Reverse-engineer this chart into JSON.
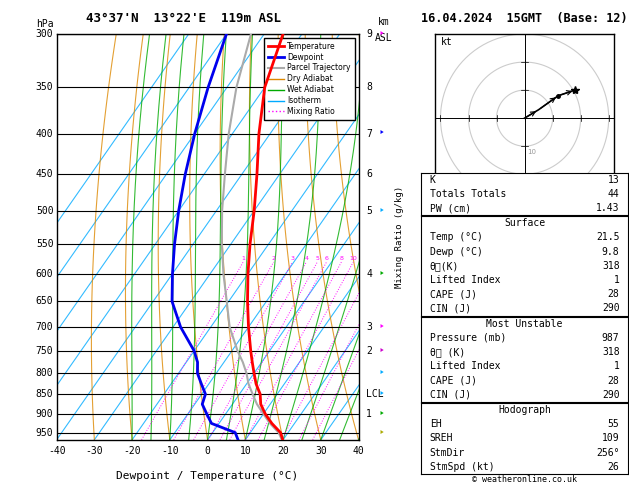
{
  "title_left": "43°37'N  13°22'E  119m ASL",
  "title_right": "16.04.2024  15GMT  (Base: 12)",
  "xlabel": "Dewpoint / Temperature (°C)",
  "pressure_levels": [
    300,
    350,
    400,
    450,
    500,
    550,
    600,
    650,
    700,
    750,
    800,
    850,
    900,
    950
  ],
  "pbot": 970.0,
  "ptop": 300.0,
  "skew_factor": 75.0,
  "xlim_left": -40,
  "temp_profile_p": [
    987,
    950,
    925,
    900,
    875,
    850,
    825,
    800,
    775,
    750,
    700,
    650,
    600,
    550,
    500,
    450,
    400,
    350,
    300
  ],
  "temp_profile_t": [
    21.5,
    18.0,
    14.0,
    10.5,
    7.5,
    5.5,
    2.5,
    0.0,
    -2.5,
    -5.0,
    -10.0,
    -15.0,
    -20.0,
    -25.0,
    -30.0,
    -36.0,
    -43.0,
    -50.0,
    -55.0
  ],
  "dewp_profile_p": [
    987,
    950,
    925,
    900,
    875,
    850,
    825,
    800,
    775,
    750,
    700,
    650,
    600,
    550,
    500,
    450,
    400,
    350,
    300
  ],
  "dewp_profile_t": [
    9.8,
    6.0,
    -2.0,
    -5.0,
    -8.0,
    -9.0,
    -12.0,
    -15.0,
    -17.0,
    -20.0,
    -28.0,
    -35.0,
    -40.0,
    -45.0,
    -50.0,
    -55.0,
    -60.0,
    -65.0,
    -70.0
  ],
  "parcel_profile_p": [
    987,
    950,
    925,
    900,
    875,
    850,
    825,
    800,
    775,
    750,
    700,
    650,
    600,
    550,
    500,
    450,
    400,
    350,
    300
  ],
  "parcel_profile_t": [
    21.5,
    17.5,
    13.5,
    10.0,
    6.5,
    3.5,
    0.5,
    -2.0,
    -5.0,
    -8.5,
    -15.0,
    -20.5,
    -26.5,
    -32.5,
    -38.5,
    -44.5,
    -51.0,
    -57.5,
    -63.5
  ],
  "temp_color": "#ff0000",
  "dewp_color": "#0000ee",
  "parcel_color": "#aaaaaa",
  "dry_adiabat_color": "#dd8800",
  "wet_adiabat_color": "#00aa00",
  "isotherm_color": "#00aaff",
  "mixing_ratio_color": "#ff00ff",
  "mixing_ratio_lines": [
    1,
    2,
    3,
    4,
    5,
    6,
    8,
    10,
    15,
    20,
    25
  ],
  "km_labels": [
    [
      300,
      "9"
    ],
    [
      350,
      "8"
    ],
    [
      400,
      "7"
    ],
    [
      450,
      "6"
    ],
    [
      500,
      "5"
    ],
    [
      600,
      "4"
    ],
    [
      700,
      "3"
    ],
    [
      750,
      "2"
    ],
    [
      850,
      "LCL"
    ],
    [
      900,
      "1"
    ]
  ],
  "wind_barb_data": [
    {
      "p": 300,
      "color": "#ff00ff",
      "type": "arrow_up"
    },
    {
      "p": 400,
      "color": "#0000ff",
      "type": "barb"
    },
    {
      "p": 500,
      "color": "#00aaff",
      "type": "barb"
    },
    {
      "p": 600,
      "color": "#00aa00",
      "type": "barb"
    },
    {
      "p": 700,
      "color": "#ff00ff",
      "type": "barb"
    },
    {
      "p": 800,
      "color": "#00aaff",
      "type": "barb"
    },
    {
      "p": 850,
      "color": "#00aa00",
      "type": "barb"
    },
    {
      "p": 900,
      "color": "#00aa00",
      "type": "barb"
    },
    {
      "p": 950,
      "color": "#ccaa00",
      "type": "barb"
    }
  ],
  "stats": {
    "K": 13,
    "TotTot": 44,
    "PW_cm": 1.43,
    "Surface_Temp": 21.5,
    "Surface_Dewp": 9.8,
    "Surface_theta_e": 318,
    "Surface_LI": 1,
    "Surface_CAPE": 28,
    "Surface_CIN": 290,
    "MU_Pressure": 987,
    "MU_theta_e": 318,
    "MU_LI": 1,
    "MU_CAPE": 28,
    "MU_CIN": 290,
    "EH": 55,
    "SREH": 109,
    "StmDir": 256,
    "StmSpd": 26
  },
  "legend_items": [
    {
      "label": "Temperature",
      "color": "#ff0000",
      "lw": 2,
      "ls": "-"
    },
    {
      "label": "Dewpoint",
      "color": "#0000ee",
      "lw": 2,
      "ls": "-"
    },
    {
      "label": "Parcel Trajectory",
      "color": "#aaaaaa",
      "lw": 1.5,
      "ls": "-"
    },
    {
      "label": "Dry Adiabat",
      "color": "#dd8800",
      "lw": 1,
      "ls": "-"
    },
    {
      "label": "Wet Adiabat",
      "color": "#00aa00",
      "lw": 1,
      "ls": "-"
    },
    {
      "label": "Isotherm",
      "color": "#00aaff",
      "lw": 1,
      "ls": "-"
    },
    {
      "label": "Mixing Ratio",
      "color": "#ff00ff",
      "lw": 1,
      "ls": ":"
    }
  ]
}
